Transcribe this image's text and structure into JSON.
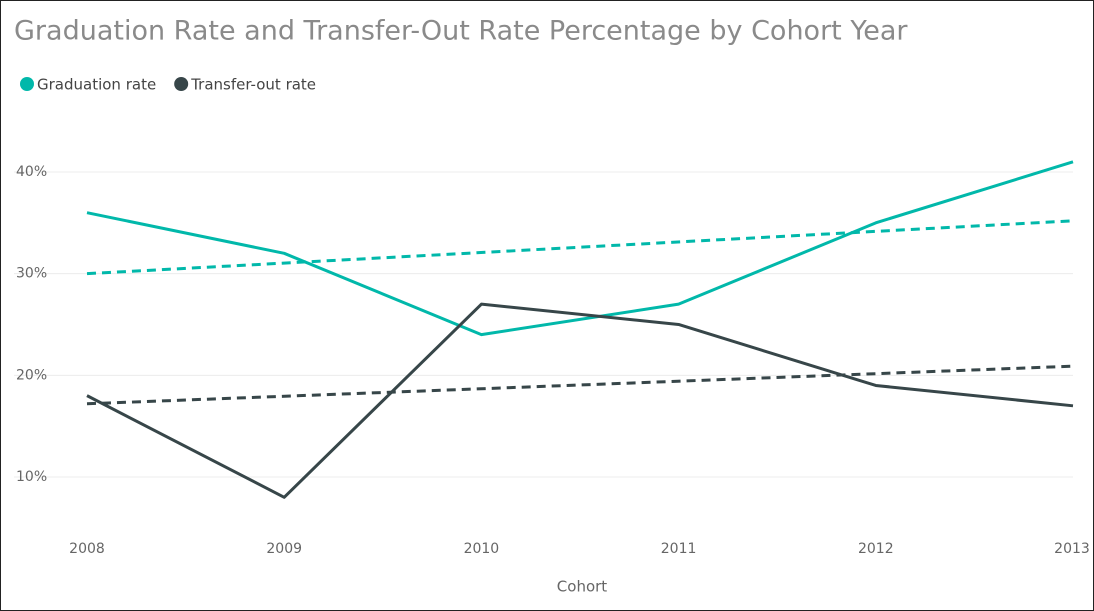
{
  "chart_data": {
    "type": "line",
    "title": "Graduation Rate and Transfer-Out Rate Percentage by Cohort Year",
    "x_label": "Cohort",
    "categories": [
      "2008",
      "2009",
      "2010",
      "2011",
      "2012",
      "2013"
    ],
    "series": [
      {
        "name": "Graduation rate",
        "color": "#01b8aa",
        "values": [
          36,
          32,
          24,
          27,
          35,
          41
        ],
        "trendline": [
          30,
          35.2
        ]
      },
      {
        "name": "Transfer-out rate",
        "color": "#374649",
        "values": [
          18,
          8,
          27,
          25,
          19,
          17
        ],
        "trendline": [
          17.2,
          20.9
        ]
      }
    ],
    "ylim": [
      5,
      43
    ],
    "yticks": [
      {
        "value": 10,
        "label": "10%"
      },
      {
        "value": 20,
        "label": "20%"
      },
      {
        "value": 30,
        "label": "30%"
      },
      {
        "value": 40,
        "label": "40%"
      }
    ],
    "grid": true,
    "legend": "top-left"
  }
}
